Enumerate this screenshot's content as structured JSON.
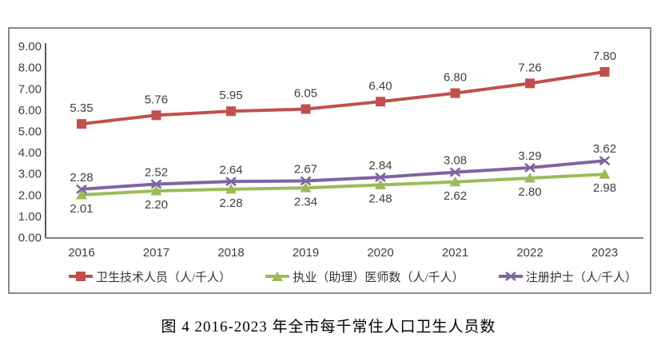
{
  "figure": {
    "caption": "图 4 2016-2023 年全市每千常住人口卫生人员数"
  },
  "chart_data": {
    "type": "line",
    "title": "图 4 2016-2023 年全市每千常住人口卫生人员数",
    "xlabel": "",
    "ylabel": "",
    "categories": [
      "2016",
      "2017",
      "2018",
      "2019",
      "2020",
      "2021",
      "2022",
      "2023"
    ],
    "series": [
      {
        "name": "卫生技术人员（人/千人）",
        "values": [
          5.35,
          5.76,
          5.95,
          6.05,
          6.4,
          6.8,
          7.26,
          7.8
        ],
        "color": "#C0504D",
        "marker": "square",
        "label_position": "above"
      },
      {
        "name": "执业（助理）医师数（人/千人）",
        "values": [
          2.01,
          2.2,
          2.28,
          2.34,
          2.48,
          2.62,
          2.8,
          2.98
        ],
        "color": "#9BBB59",
        "marker": "triangle",
        "label_position": "below"
      },
      {
        "name": "注册护士（人/千人）",
        "values": [
          2.28,
          2.52,
          2.64,
          2.67,
          2.84,
          3.08,
          3.29,
          3.62
        ],
        "color": "#8064A2",
        "marker": "x",
        "label_position": "above"
      }
    ],
    "y_ticks": [
      "9.00",
      "8.00",
      "7.00",
      "6.00",
      "5.00",
      "4.00",
      "3.00",
      "2.00",
      "1.00",
      "0.00"
    ],
    "ylim": [
      0,
      9
    ],
    "grid": false,
    "legend_position": "bottom",
    "frame_border_color": "#8C8C8C",
    "y_axis_line_color": "#595959",
    "x_axis_line_color": "#808080",
    "text_color": "#3F3F3F"
  }
}
